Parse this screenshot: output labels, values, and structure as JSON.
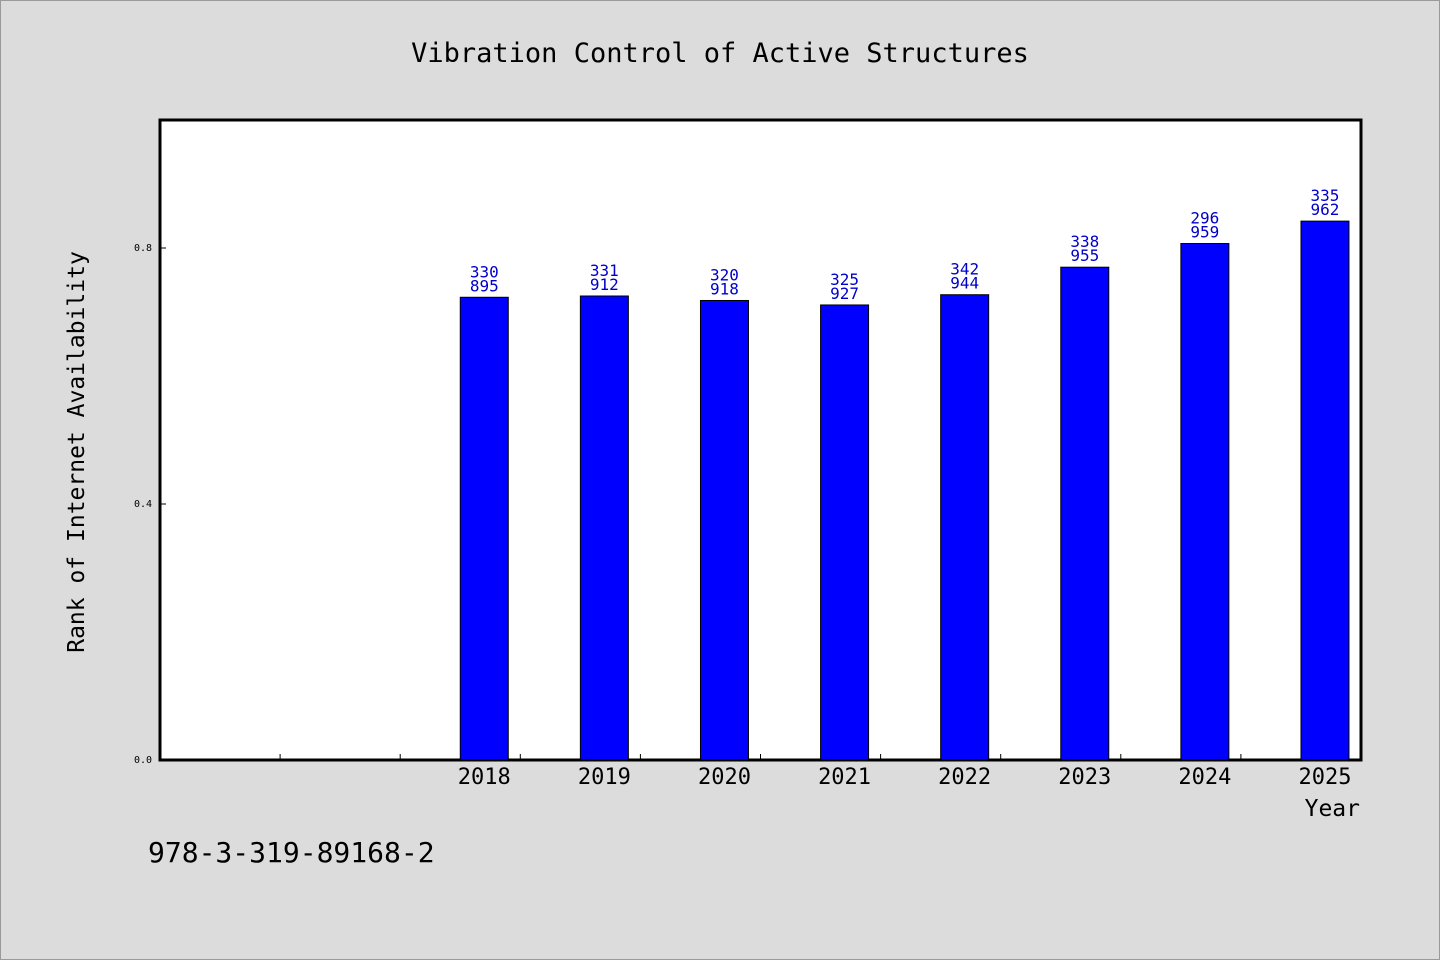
{
  "chart_data": {
    "type": "bar",
    "title": "Vibration Control of Active Structures",
    "xlabel": "Year",
    "ylabel": "Rank of Internet Availability",
    "categories": [
      "",
      "",
      "2018",
      "2019",
      "2020",
      "2021",
      "2022",
      "2023",
      "2024",
      "2025"
    ],
    "values": [
      null,
      null,
      0.723,
      0.725,
      0.718,
      0.711,
      0.727,
      0.77,
      0.807,
      0.842
    ],
    "data_labels": [
      null,
      null,
      [
        "330",
        "895"
      ],
      [
        "331",
        "912"
      ],
      [
        "320",
        "918"
      ],
      [
        "325",
        "927"
      ],
      [
        "342",
        "944"
      ],
      [
        "338",
        "955"
      ],
      [
        "296",
        "959"
      ],
      [
        "335",
        "962"
      ]
    ],
    "yticks": [
      {
        "value": 0.0,
        "label": "0.0"
      },
      {
        "value": 0.4,
        "label": "0.4"
      },
      {
        "value": 0.8,
        "label": "0.8"
      }
    ],
    "ylim": [
      0,
      1.0
    ],
    "grid": false,
    "colors": {
      "bar": "#0000ff",
      "label": "#0000cc",
      "background": "#dcdcdc",
      "plot": "#ffffff"
    }
  },
  "footer": {
    "code": "978-3-319-89168-2"
  }
}
